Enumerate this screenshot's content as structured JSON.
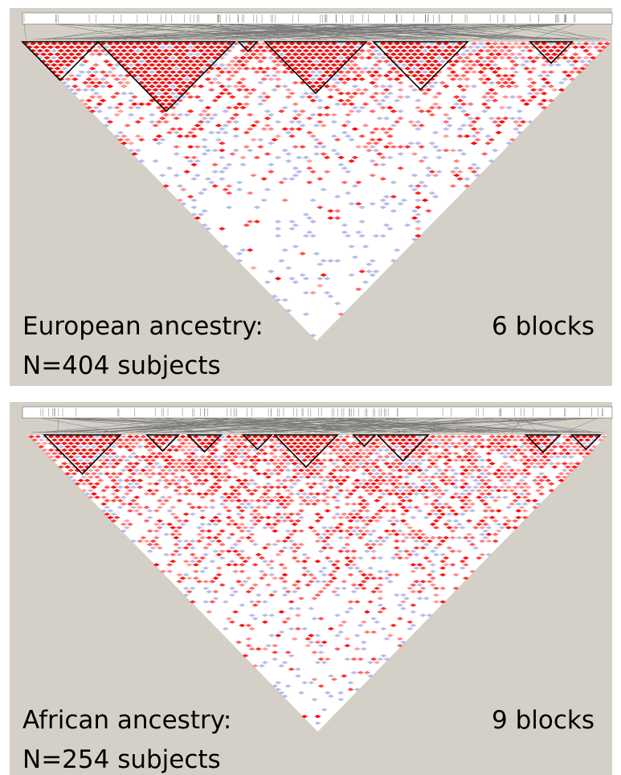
{
  "panels": [
    {
      "label": "European ancestry:",
      "blocks": "6 blocks",
      "subjects": "N=404 subjects"
    },
    {
      "label": "African ancestry:",
      "blocks": "9 blocks",
      "subjects": "N=254 subjects"
    }
  ]
}
